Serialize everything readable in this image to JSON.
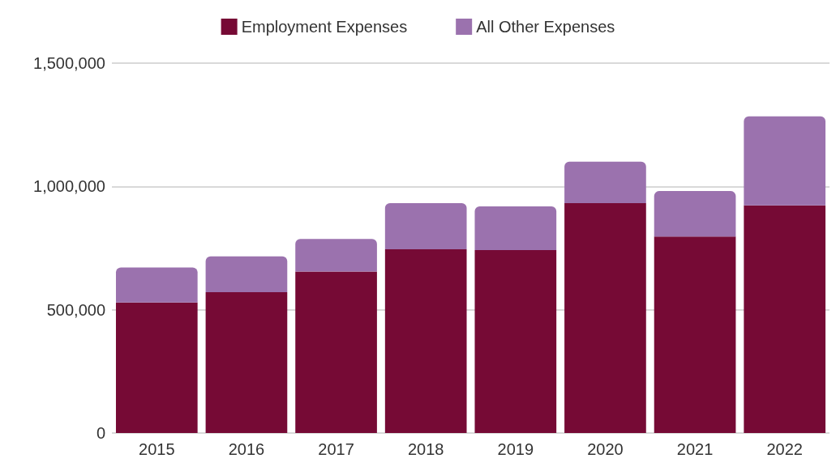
{
  "chart_data": {
    "type": "bar",
    "stacked": true,
    "categories": [
      "2015",
      "2016",
      "2017",
      "2018",
      "2019",
      "2020",
      "2021",
      "2022"
    ],
    "series": [
      {
        "name": "Employment Expenses",
        "color": "#760a35",
        "values": [
          529000,
          571000,
          655000,
          745000,
          742000,
          932000,
          797000,
          923000
        ]
      },
      {
        "name": "All Other Expenses",
        "color": "#9b72ae",
        "values": [
          142000,
          145000,
          132000,
          187000,
          177000,
          168000,
          184000,
          361000
        ]
      }
    ],
    "ylim": [
      0,
      1500000
    ],
    "yticks": [
      0,
      {
        "value": 500000,
        "label": "500,000"
      },
      {
        "value": 1000000,
        "label": "1,000,000"
      },
      {
        "value": 1500000,
        "label": "1,500,000"
      }
    ],
    "grid": "y",
    "legend": "top"
  }
}
